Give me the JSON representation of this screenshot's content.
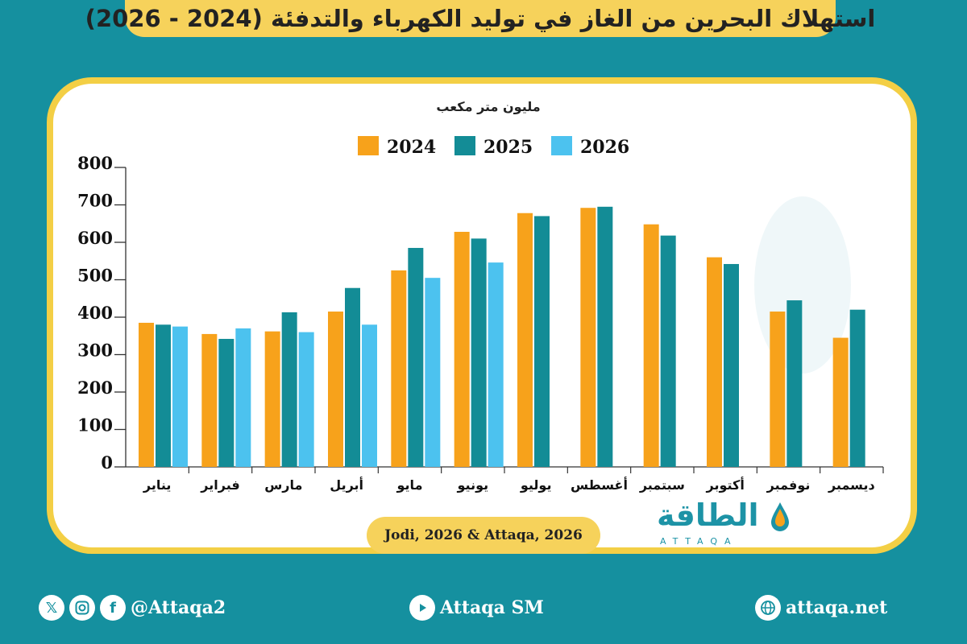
{
  "title": "استهلاك البحرين من الغاز في توليد الكهرباء والتدفئة (2024 - 2026)",
  "source": "Jodi, 2026 & Attaqa, 2026",
  "logo": {
    "arabic": "الطاقة",
    "latin": "ATTAQA"
  },
  "footer": {
    "social_handle": "@Attaqa2",
    "youtube": "Attaqa SM",
    "website": "attaqa.net"
  },
  "colors": {
    "2024": "#f7a21b",
    "2025": "#138c96",
    "2026": "#4cc2ef",
    "background": "#15909f",
    "accent": "#f3cf45"
  },
  "icons": [
    "x-icon",
    "instagram-icon",
    "facebook-icon",
    "youtube-icon",
    "globe-icon"
  ],
  "chart_data": {
    "type": "bar",
    "ylabel": "مليون متر مكعب",
    "ylim": [
      0,
      800
    ],
    "yticks": [
      0,
      100,
      200,
      300,
      400,
      500,
      600,
      700,
      800
    ],
    "grid": false,
    "legend_position": "top-center",
    "categories": [
      "يناير",
      "فبراير",
      "مارس",
      "أبريل",
      "مايو",
      "يونيو",
      "يوليو",
      "أغسطس",
      "سبتمبر",
      "أكتوبر",
      "نوفمبر",
      "ديسمبر"
    ],
    "series": [
      {
        "name": "2024",
        "color": "#f7a21b",
        "values": [
          385,
          355,
          362,
          415,
          525,
          628,
          678,
          692,
          648,
          560,
          415,
          345
        ]
      },
      {
        "name": "2025",
        "color": "#138c96",
        "values": [
          380,
          342,
          413,
          478,
          585,
          610,
          670,
          695,
          618,
          542,
          445,
          420
        ]
      },
      {
        "name": "2026",
        "color": "#4cc2ef",
        "values": [
          375,
          370,
          360,
          380,
          505,
          546,
          null,
          null,
          null,
          null,
          null,
          null
        ]
      }
    ]
  }
}
